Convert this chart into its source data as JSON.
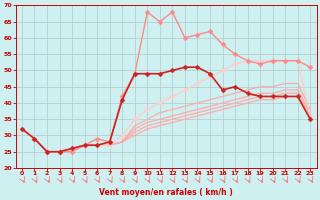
{
  "xlabel": "Vent moyen/en rafales ( km/h )",
  "background_color": "#cff0f0",
  "grid_color": "#b0c8c8",
  "xlim": [
    -0.5,
    23.5
  ],
  "ylim": [
    20,
    70
  ],
  "yticks": [
    20,
    25,
    30,
    35,
    40,
    45,
    50,
    55,
    60,
    65,
    70
  ],
  "xticks": [
    0,
    1,
    2,
    3,
    4,
    5,
    6,
    7,
    8,
    9,
    10,
    11,
    12,
    13,
    14,
    15,
    16,
    17,
    18,
    19,
    20,
    21,
    22,
    23
  ],
  "series": [
    {
      "x": [
        0,
        1,
        2,
        3,
        4,
        5,
        6,
        7,
        8,
        9,
        10,
        11,
        12,
        13,
        14,
        15,
        16,
        17,
        18,
        19,
        20,
        21,
        22,
        23
      ],
      "y": [
        32,
        29,
        25,
        25,
        26,
        27,
        27,
        27,
        28,
        30,
        32,
        33,
        34,
        35,
        36,
        37,
        38,
        39,
        40,
        41,
        41,
        42,
        42,
        35
      ],
      "color": "#ffaaaa",
      "marker": null,
      "linewidth": 0.9,
      "zorder": 2
    },
    {
      "x": [
        0,
        1,
        2,
        3,
        4,
        5,
        6,
        7,
        8,
        9,
        10,
        11,
        12,
        13,
        14,
        15,
        16,
        17,
        18,
        19,
        20,
        21,
        22,
        23
      ],
      "y": [
        32,
        29,
        25,
        25,
        26,
        27,
        27,
        27,
        28,
        31,
        33,
        34,
        35,
        36,
        37,
        38,
        39,
        40,
        41,
        42,
        42,
        43,
        43,
        36
      ],
      "color": "#ffaaaa",
      "marker": null,
      "linewidth": 0.9,
      "zorder": 2
    },
    {
      "x": [
        0,
        1,
        2,
        3,
        4,
        5,
        6,
        7,
        8,
        9,
        10,
        11,
        12,
        13,
        14,
        15,
        16,
        17,
        18,
        19,
        20,
        21,
        22,
        23
      ],
      "y": [
        32,
        29,
        25,
        25,
        26,
        27,
        27,
        27,
        28,
        32,
        34,
        35,
        36,
        37,
        38,
        39,
        40,
        41,
        42,
        43,
        43,
        44,
        44,
        37
      ],
      "color": "#ffaaaa",
      "marker": null,
      "linewidth": 0.9,
      "zorder": 2
    },
    {
      "x": [
        0,
        1,
        2,
        3,
        4,
        5,
        6,
        7,
        8,
        9,
        10,
        11,
        12,
        13,
        14,
        15,
        16,
        17,
        18,
        19,
        20,
        21,
        22,
        23
      ],
      "y": [
        32,
        29,
        25,
        25,
        26,
        27,
        27,
        27,
        28,
        33,
        35,
        37,
        38,
        39,
        40,
        41,
        42,
        43,
        44,
        45,
        45,
        46,
        46,
        38
      ],
      "color": "#ffaaaa",
      "marker": null,
      "linewidth": 0.9,
      "zorder": 2
    },
    {
      "x": [
        0,
        1,
        2,
        3,
        4,
        5,
        6,
        7,
        8,
        9,
        10,
        11,
        12,
        13,
        14,
        15,
        16,
        17,
        18,
        19,
        20,
        21,
        22,
        23
      ],
      "y": [
        32,
        29,
        25,
        25,
        26,
        27,
        27,
        27,
        30,
        35,
        38,
        40,
        42,
        44,
        46,
        48,
        50,
        52,
        53,
        53,
        53,
        53,
        53,
        36
      ],
      "color": "#ffcccc",
      "marker": "D",
      "markersize": 2.5,
      "linewidth": 1.0,
      "zorder": 3
    },
    {
      "x": [
        0,
        1,
        2,
        3,
        4,
        5,
        6,
        7,
        8,
        9,
        10,
        11,
        12,
        13,
        14,
        15,
        16,
        17,
        18,
        19,
        20,
        21,
        22,
        23
      ],
      "y": [
        32,
        29,
        25,
        25,
        26,
        27,
        27,
        28,
        41,
        49,
        49,
        49,
        50,
        51,
        51,
        49,
        44,
        45,
        43,
        42,
        42,
        42,
        42,
        35
      ],
      "color": "#cc2222",
      "marker": "D",
      "markersize": 2.5,
      "linewidth": 1.2,
      "zorder": 4
    },
    {
      "x": [
        1,
        2,
        3,
        4,
        5,
        6,
        7,
        8,
        9,
        10,
        11,
        12,
        13,
        14,
        15,
        16,
        17,
        18,
        19,
        20,
        21,
        22,
        23
      ],
      "y": [
        29,
        25,
        25,
        25,
        27,
        29,
        28,
        42,
        49,
        68,
        65,
        68,
        60,
        61,
        62,
        58,
        55,
        53,
        52,
        53,
        53,
        53,
        51
      ],
      "color": "#ff8888",
      "marker": "D",
      "markersize": 2.5,
      "linewidth": 1.0,
      "zorder": 3
    }
  ],
  "arrow_color": "#ff6666",
  "tick_color": "#cc0000",
  "tick_label_color": "#cc0000",
  "xlabel_color": "#cc0000"
}
